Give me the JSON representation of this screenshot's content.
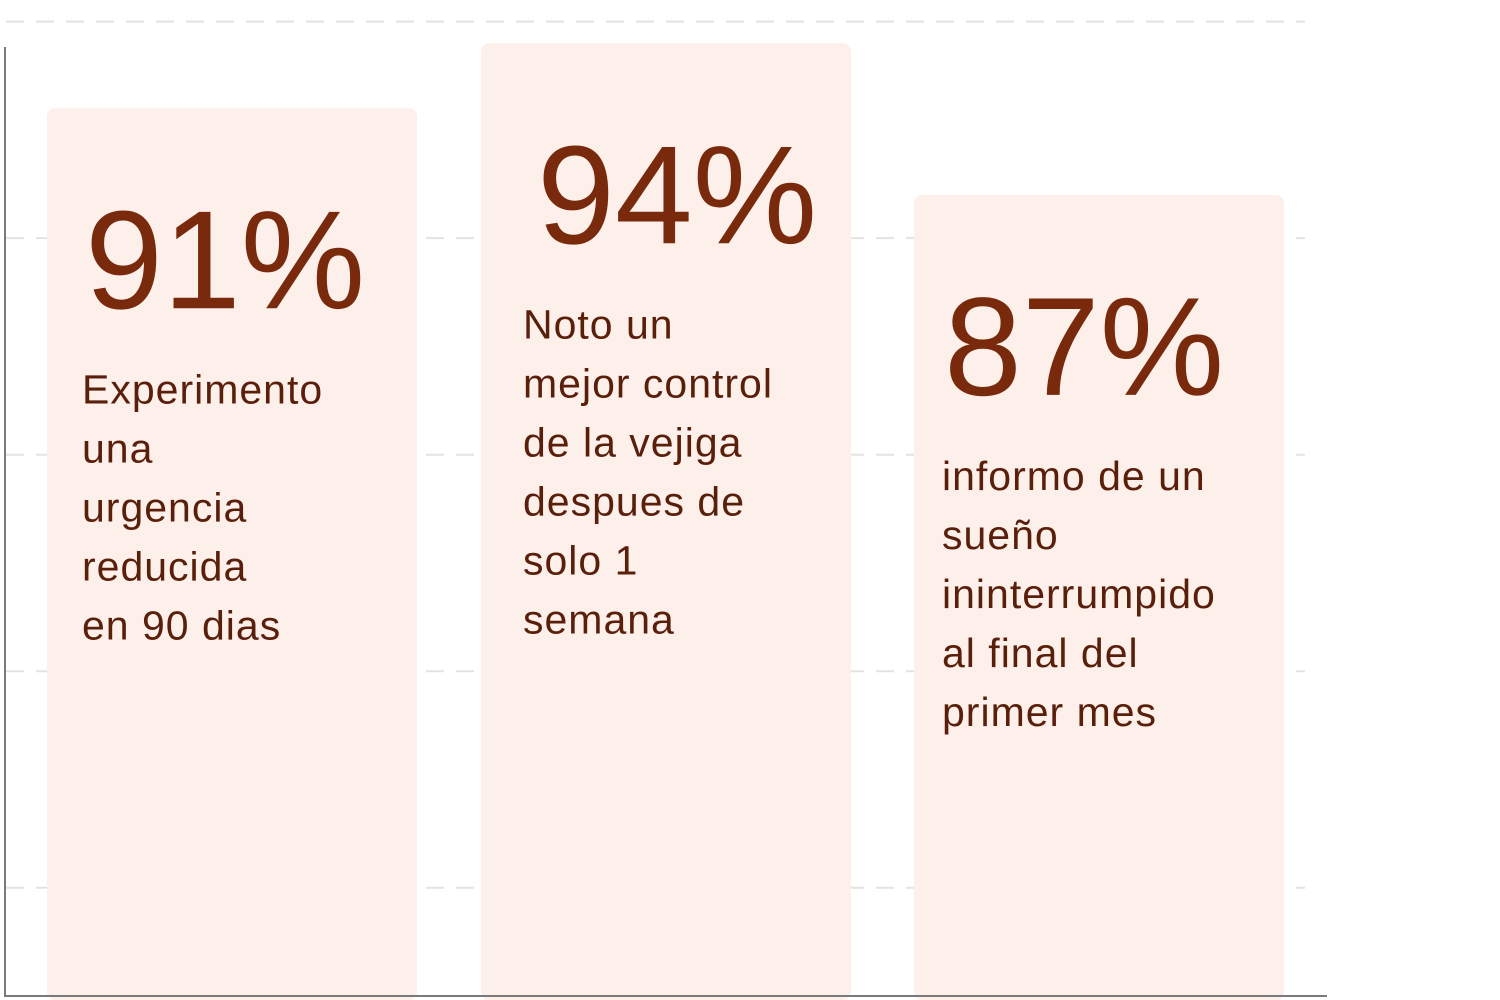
{
  "chart_data": {
    "type": "bar",
    "categories": [
      "Experimento una urgencia reducida en 90 dias",
      "Noto un mejor control de la vejiga despues de solo 1 semana",
      "informo de un sueño ininterrumpido al final del primer mes"
    ],
    "values": [
      91,
      94,
      87
    ],
    "value_labels": [
      "91%",
      "94%",
      "87%"
    ],
    "descriptions": [
      [
        "Experimento",
        "una",
        "urgencia",
        "reducida",
        "en 90 dias"
      ],
      [
        "Noto un",
        "mejor control",
        "de la vejiga",
        "despues de",
        "solo 1",
        "semana"
      ],
      [
        "informo de un",
        "sueño",
        "ininterrumpido",
        "al final del",
        "primer mes"
      ]
    ],
    "ylim": [
      50,
      96
    ],
    "gridlines": [
      55,
      65,
      75,
      85,
      95
    ],
    "grid": true,
    "grid_style": "dashed",
    "title": "",
    "xlabel": "",
    "ylabel": "",
    "colors": {
      "bar": "#fdefea",
      "value_text": "#7a2a0c",
      "desc_text": "#5a1f0b",
      "grid": "#e3e3e3",
      "axis": "#7a7a7a"
    }
  }
}
